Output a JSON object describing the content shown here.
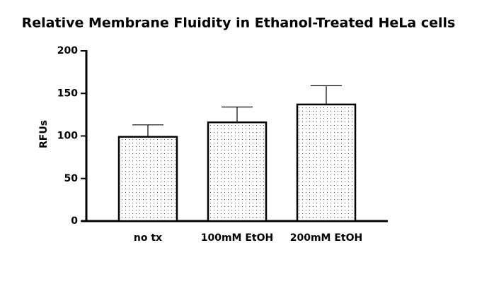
{
  "chart_data": {
    "type": "bar",
    "title": "Relative Membrane Fluidity in Ethanol-Treated HeLa cells",
    "y_label": "RFUs",
    "categories": [
      "no tx",
      "100mM EtOH",
      "200mM EtOH"
    ],
    "values": [
      99,
      116,
      137
    ],
    "errors": [
      14,
      18,
      22
    ],
    "ylim": [
      0,
      200
    ],
    "yticks": [
      0,
      50,
      100,
      150,
      200
    ]
  }
}
